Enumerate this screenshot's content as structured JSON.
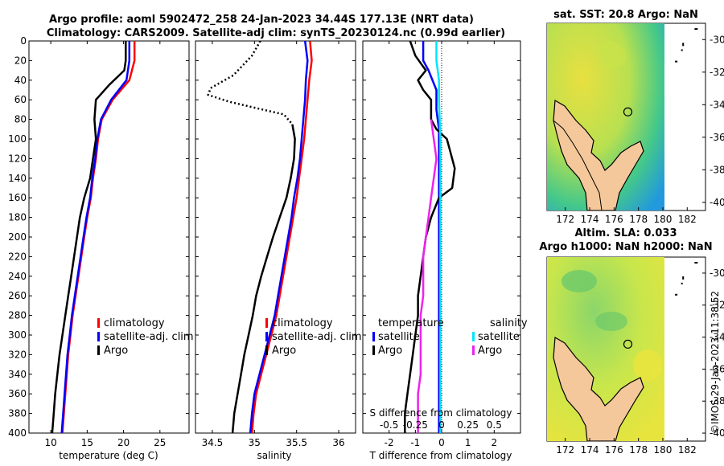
{
  "figure": {
    "title_line1": "Argo profile: aoml 5902472_258 24-Jan-2023 34.44S 177.13E (NRT data)",
    "title_line2": "Climatology: CARS2009. Satellite-adj clim: synTS_20230124.nc (0.99d earlier)",
    "timestamp": "©IMOS 29-Jan-2023 11:38:52"
  },
  "colors": {
    "climatology": "#ff0000",
    "satellite_adj": "#0000ff",
    "argo": "#000000",
    "sat_salinity": "#00e5ff",
    "argo_salinity": "#ee22ee",
    "land": "#f4c89b",
    "sst_field": "#e0d840",
    "sla_field": "#bde050"
  },
  "chart_data": [
    {
      "type": "line",
      "id": "temperature",
      "xlabel": "temperature (deg C)",
      "ylabel": "",
      "xlim": [
        7,
        29
      ],
      "ylim": [
        0,
        400
      ],
      "y_inverted": true,
      "xticks": [
        10,
        15,
        20,
        25
      ],
      "yticks": [
        0,
        20,
        40,
        60,
        80,
        100,
        120,
        140,
        160,
        180,
        200,
        220,
        240,
        260,
        280,
        300,
        320,
        340,
        360,
        380,
        400
      ],
      "legend": [
        "climatology",
        "satellite-adj. clim",
        "Argo"
      ],
      "series": [
        {
          "name": "climatology",
          "color": "#ff0000",
          "points": [
            [
              21.5,
              0
            ],
            [
              21.5,
              20
            ],
            [
              20.8,
              40
            ],
            [
              18.5,
              60
            ],
            [
              17.0,
              80
            ],
            [
              16.5,
              100
            ],
            [
              16.2,
              120
            ],
            [
              15.8,
              140
            ],
            [
              15.5,
              160
            ],
            [
              15.0,
              180
            ],
            [
              14.6,
              200
            ],
            [
              14.2,
              220
            ],
            [
              13.8,
              240
            ],
            [
              13.4,
              260
            ],
            [
              13.0,
              280
            ],
            [
              12.7,
              300
            ],
            [
              12.4,
              320
            ],
            [
              12.2,
              340
            ],
            [
              12.0,
              360
            ],
            [
              11.8,
              380
            ],
            [
              11.6,
              400
            ]
          ]
        },
        {
          "name": "satellite-adj. clim",
          "color": "#0000ff",
          "points": [
            [
              20.8,
              0
            ],
            [
              20.8,
              20
            ],
            [
              20.4,
              40
            ],
            [
              18.3,
              60
            ],
            [
              16.9,
              80
            ],
            [
              16.4,
              100
            ],
            [
              16.1,
              120
            ],
            [
              15.7,
              140
            ],
            [
              15.4,
              160
            ],
            [
              14.9,
              180
            ],
            [
              14.5,
              200
            ],
            [
              14.1,
              220
            ],
            [
              13.7,
              240
            ],
            [
              13.3,
              260
            ],
            [
              12.9,
              280
            ],
            [
              12.6,
              300
            ],
            [
              12.3,
              320
            ],
            [
              12.1,
              340
            ],
            [
              11.9,
              360
            ],
            [
              11.7,
              380
            ],
            [
              11.5,
              400
            ]
          ]
        },
        {
          "name": "Argo",
          "color": "#000000",
          "points": [
            [
              20.3,
              0
            ],
            [
              20.3,
              20
            ],
            [
              20.1,
              30
            ],
            [
              18.0,
              45
            ],
            [
              16.2,
              60
            ],
            [
              16.0,
              80
            ],
            [
              16.2,
              100
            ],
            [
              15.8,
              120
            ],
            [
              15.4,
              140
            ],
            [
              14.6,
              160
            ],
            [
              14.0,
              180
            ],
            [
              13.6,
              200
            ],
            [
              13.2,
              220
            ],
            [
              12.8,
              240
            ],
            [
              12.4,
              260
            ],
            [
              12.0,
              280
            ],
            [
              11.6,
              300
            ],
            [
              11.2,
              320
            ],
            [
              10.9,
              340
            ],
            [
              10.6,
              360
            ],
            [
              10.4,
              380
            ],
            [
              10.2,
              400
            ]
          ]
        }
      ]
    },
    {
      "type": "line",
      "id": "salinity",
      "xlabel": "salinity",
      "ylabel": "",
      "xlim": [
        34.3,
        36.2
      ],
      "ylim": [
        0,
        400
      ],
      "y_inverted": true,
      "xticks": [
        34.5,
        35,
        35.5,
        36
      ],
      "legend": [
        "climatology",
        "satellite-adj. clim",
        "Argo"
      ],
      "series": [
        {
          "name": "climatology",
          "color": "#ff0000",
          "points": [
            [
              35.66,
              0
            ],
            [
              35.68,
              20
            ],
            [
              35.65,
              40
            ],
            [
              35.63,
              60
            ],
            [
              35.61,
              80
            ],
            [
              35.59,
              100
            ],
            [
              35.56,
              120
            ],
            [
              35.53,
              140
            ],
            [
              35.5,
              160
            ],
            [
              35.46,
              180
            ],
            [
              35.42,
              200
            ],
            [
              35.38,
              220
            ],
            [
              35.34,
              240
            ],
            [
              35.3,
              260
            ],
            [
              35.26,
              280
            ],
            [
              35.2,
              300
            ],
            [
              35.14,
              320
            ],
            [
              35.08,
              340
            ],
            [
              35.02,
              360
            ],
            [
              34.99,
              380
            ],
            [
              34.97,
              400
            ]
          ]
        },
        {
          "name": "satellite-adj. clim",
          "color": "#0000ff",
          "points": [
            [
              35.6,
              0
            ],
            [
              35.63,
              20
            ],
            [
              35.61,
              40
            ],
            [
              35.6,
              60
            ],
            [
              35.58,
              80
            ],
            [
              35.56,
              100
            ],
            [
              35.54,
              120
            ],
            [
              35.51,
              140
            ],
            [
              35.47,
              160
            ],
            [
              35.44,
              180
            ],
            [
              35.4,
              200
            ],
            [
              35.36,
              220
            ],
            [
              35.32,
              240
            ],
            [
              35.28,
              260
            ],
            [
              35.24,
              280
            ],
            [
              35.18,
              300
            ],
            [
              35.12,
              320
            ],
            [
              35.06,
              340
            ],
            [
              35.0,
              360
            ],
            [
              34.97,
              380
            ],
            [
              34.95,
              400
            ]
          ]
        },
        {
          "name": "Argo",
          "color": "#000000",
          "dashed": true,
          "points": [
            [
              35.07,
              0
            ],
            [
              34.97,
              15
            ],
            [
              34.75,
              35
            ],
            [
              34.48,
              48
            ],
            [
              34.45,
              55
            ],
            [
              34.7,
              62
            ],
            [
              35.0,
              68
            ],
            [
              35.35,
              75
            ],
            [
              35.45,
              85
            ]
          ]
        },
        {
          "name": "Argo",
          "color": "#000000",
          "points": [
            [
              35.45,
              85
            ],
            [
              35.48,
              100
            ],
            [
              35.47,
              120
            ],
            [
              35.43,
              140
            ],
            [
              35.38,
              160
            ],
            [
              35.3,
              180
            ],
            [
              35.22,
              200
            ],
            [
              35.15,
              220
            ],
            [
              35.08,
              240
            ],
            [
              35.02,
              260
            ],
            [
              34.98,
              280
            ],
            [
              34.93,
              300
            ],
            [
              34.88,
              320
            ],
            [
              34.84,
              340
            ],
            [
              34.8,
              360
            ],
            [
              34.76,
              380
            ],
            [
              34.74,
              400
            ]
          ]
        }
      ]
    },
    {
      "type": "line",
      "id": "difference",
      "xlabel": "T difference from climatology",
      "xlabel_top": "S difference from climatology",
      "xlim": [
        -3,
        3
      ],
      "ylim": [
        0,
        400
      ],
      "y_inverted": true,
      "xticks": [
        -2,
        -1,
        0,
        1,
        2
      ],
      "xticklabels": [
        "-2",
        "-1",
        "0",
        "1",
        "2"
      ],
      "sticks": [
        -0.5,
        -0.25,
        0,
        0.25,
        0.5
      ],
      "sticklabels": [
        "-0.5",
        "-0.25",
        "0",
        "0.25",
        "0.5"
      ],
      "legend_t": {
        "heading": "temperature",
        "items": [
          "satellite",
          "Argo"
        ]
      },
      "legend_s": {
        "heading": "salinity",
        "items": [
          "satellite",
          "Argo"
        ]
      },
      "series": [
        {
          "name": "T satellite",
          "color": "#0000ff",
          "points": [
            [
              -0.7,
              0
            ],
            [
              -0.7,
              20
            ],
            [
              -0.5,
              30
            ],
            [
              -0.2,
              50
            ],
            [
              -0.2,
              70
            ],
            [
              -0.1,
              90
            ],
            [
              -0.1,
              120
            ],
            [
              -0.1,
              160
            ],
            [
              -0.1,
              200
            ],
            [
              -0.1,
              240
            ],
            [
              -0.1,
              280
            ],
            [
              -0.1,
              320
            ],
            [
              -0.1,
              360
            ],
            [
              -0.1,
              400
            ]
          ]
        },
        {
          "name": "T Argo",
          "color": "#000000",
          "points": [
            [
              -1.2,
              0
            ],
            [
              -1.0,
              15
            ],
            [
              -0.6,
              30
            ],
            [
              -0.9,
              40
            ],
            [
              -0.7,
              50
            ],
            [
              -0.4,
              60
            ],
            [
              -0.4,
              80
            ],
            [
              -0.2,
              90
            ],
            [
              0.2,
              100
            ],
            [
              0.3,
              110
            ],
            [
              0.5,
              130
            ],
            [
              0.4,
              150
            ],
            [
              -0.1,
              160
            ],
            [
              -0.4,
              180
            ],
            [
              -0.6,
              200
            ],
            [
              -0.7,
              220
            ],
            [
              -0.8,
              240
            ],
            [
              -0.9,
              260
            ],
            [
              -0.9,
              280
            ],
            [
              -1.0,
              300
            ],
            [
              -1.1,
              320
            ],
            [
              -1.2,
              340
            ],
            [
              -1.3,
              360
            ],
            [
              -1.4,
              380
            ],
            [
              -1.4,
              400
            ]
          ]
        },
        {
          "name": "S satellite",
          "color": "#00e5ff",
          "points": [
            [
              -0.2,
              0
            ],
            [
              -0.2,
              20
            ],
            [
              -0.1,
              40
            ],
            [
              -0.1,
              60
            ],
            [
              -0.05,
              100
            ],
            [
              -0.05,
              150
            ],
            [
              -0.05,
              200
            ],
            [
              -0.05,
              260
            ],
            [
              -0.05,
              320
            ],
            [
              -0.05,
              400
            ]
          ]
        },
        {
          "name": "S Argo",
          "color": "#ee22ee",
          "points": [
            [
              -0.4,
              80
            ],
            [
              -0.3,
              100
            ],
            [
              -0.2,
              120
            ],
            [
              -0.3,
              140
            ],
            [
              -0.4,
              160
            ],
            [
              -0.5,
              180
            ],
            [
              -0.6,
              200
            ],
            [
              -0.7,
              220
            ],
            [
              -0.7,
              240
            ],
            [
              -0.7,
              260
            ],
            [
              -0.8,
              280
            ],
            [
              -0.8,
              300
            ],
            [
              -0.8,
              320
            ],
            [
              -0.8,
              340
            ],
            [
              -0.9,
              360
            ],
            [
              -0.9,
              380
            ],
            [
              -0.9,
              400
            ]
          ]
        }
      ]
    },
    {
      "type": "heatmap",
      "id": "sst-map",
      "title": "sat. SST: 20.8 Argo: NaN",
      "xlim": [
        170.5,
        183.5
      ],
      "ylim": [
        -40.5,
        -29
      ],
      "xticks": [
        172,
        174,
        176,
        178,
        180,
        182
      ],
      "yticks": [
        -30,
        -32,
        -34,
        -36,
        -38,
        -40
      ],
      "argo_position": [
        177.13,
        -34.44
      ]
    },
    {
      "type": "heatmap",
      "id": "sla-map",
      "title_line1": "Altim. SLA: 0.033",
      "title_line2": "Argo h1000: NaN h2000: NaN",
      "xlim": [
        170.5,
        183.5
      ],
      "ylim": [
        -40.5,
        -29
      ],
      "xticks": [
        172,
        174,
        176,
        178,
        180,
        182
      ],
      "yticks": [
        -30,
        -32,
        -34,
        -36,
        -38,
        -40
      ],
      "argo_position": [
        177.13,
        -34.44
      ]
    }
  ]
}
